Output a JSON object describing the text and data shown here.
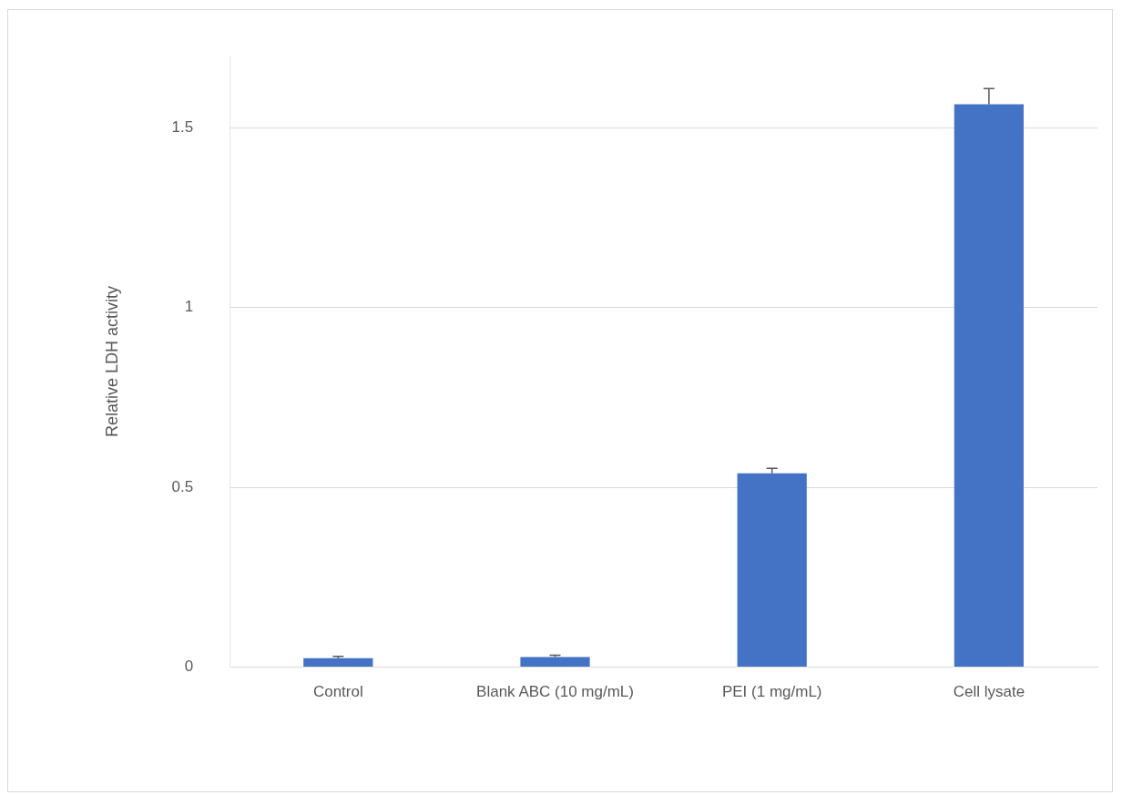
{
  "chart_data": {
    "type": "bar",
    "ylabel": "Relative LDH activity",
    "categories": [
      "Control",
      "Blank ABC (10 mg/mL)",
      "PEI (1 mg/mL)",
      "Cell lysate"
    ],
    "values": [
      0.025,
      0.028,
      0.539,
      1.565
    ],
    "errors": [
      [
        0.025,
        0.03
      ],
      [
        0.028,
        0.033
      ],
      [
        0.539,
        0.553
      ],
      [
        1.565,
        1.609
      ]
    ],
    "color": "#4472c4",
    "ylim": [
      0,
      1.7
    ],
    "yticks": [
      0,
      0.5,
      1,
      1.5
    ],
    "grid": "y",
    "legend": false
  }
}
